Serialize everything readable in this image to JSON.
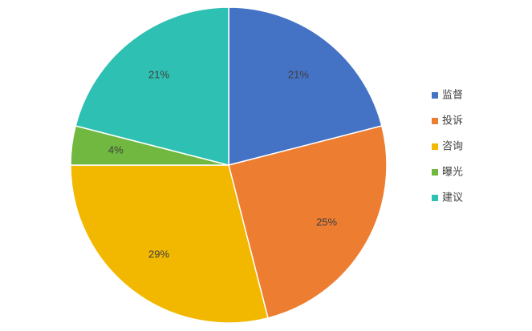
{
  "chart_data": {
    "type": "pie",
    "categories": [
      "监督",
      "投诉",
      "咨询",
      "曝光",
      "建议"
    ],
    "values": [
      21,
      25,
      29,
      4,
      21
    ],
    "value_labels": [
      "21%",
      "25%",
      "29%",
      "4%",
      "21%"
    ],
    "colors": [
      "#4472c4",
      "#ed7d31",
      "#f2b800",
      "#70b840",
      "#2ec0b2"
    ],
    "legend": "right"
  }
}
